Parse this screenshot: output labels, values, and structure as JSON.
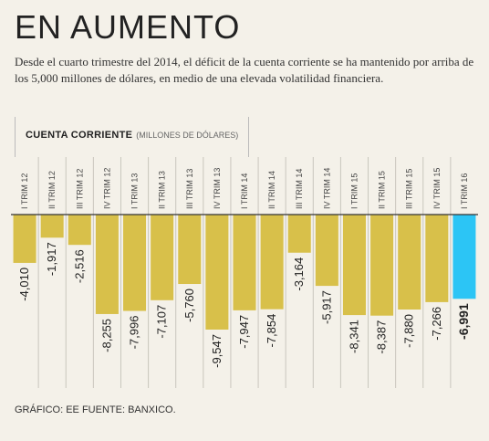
{
  "header": {
    "title": "EN AUMENTO",
    "subtitle": "Desde el cuarto trimestre del 2014, el déficit de la cuenta corriente se ha man­tenido por arriba de los 5,000 millones de dólares, en medio de una elevada vola­tilidad financiera."
  },
  "legend": {
    "title": "CUENTA CORRIENTE",
    "unit": "(MILLONES DE DÓLARES)"
  },
  "footer": {
    "source": "GRÁFICO: EE FUENTE: BANXICO."
  },
  "chart_data": {
    "type": "bar",
    "categories": [
      "I TRIM 12",
      "II TRIM 12",
      "III TRIM 12",
      "IV TRIM 12",
      "I TRIM 13",
      "II TRIM 13",
      "III TRIM 13",
      "IV TRIM 13",
      "I TRIM 14",
      "II TRIM 14",
      "III TRIM 14",
      "IV TRIM 14",
      "I TRIM 15",
      "II TRIM 15",
      "III TRIM 15",
      "IV TRIM 15",
      "I TRIM 16"
    ],
    "values": [
      -4010,
      -1917,
      -2516,
      -8255,
      -7996,
      -7107,
      -5760,
      -9547,
      -7947,
      -7854,
      -3164,
      -5917,
      -8341,
      -8387,
      -7880,
      -7266,
      -6991
    ],
    "labels": [
      "-4,010",
      "-1,917",
      "-2,516",
      "-8,255",
      "-7,996",
      "-7,107",
      "-5,760",
      "-9,547",
      "-7,947",
      "-7,854",
      "-3,164",
      "-5,917",
      "-8,341",
      "-8,387",
      "-7,880",
      "-7,266",
      "-6,991"
    ],
    "colors": {
      "bar": "#d8c04a",
      "highlight": "#2cc5f5",
      "grid": "#c9c6bd",
      "axis": "#333333"
    },
    "highlight_index": 16,
    "ylim": [
      -10000,
      0
    ],
    "grid": true
  }
}
